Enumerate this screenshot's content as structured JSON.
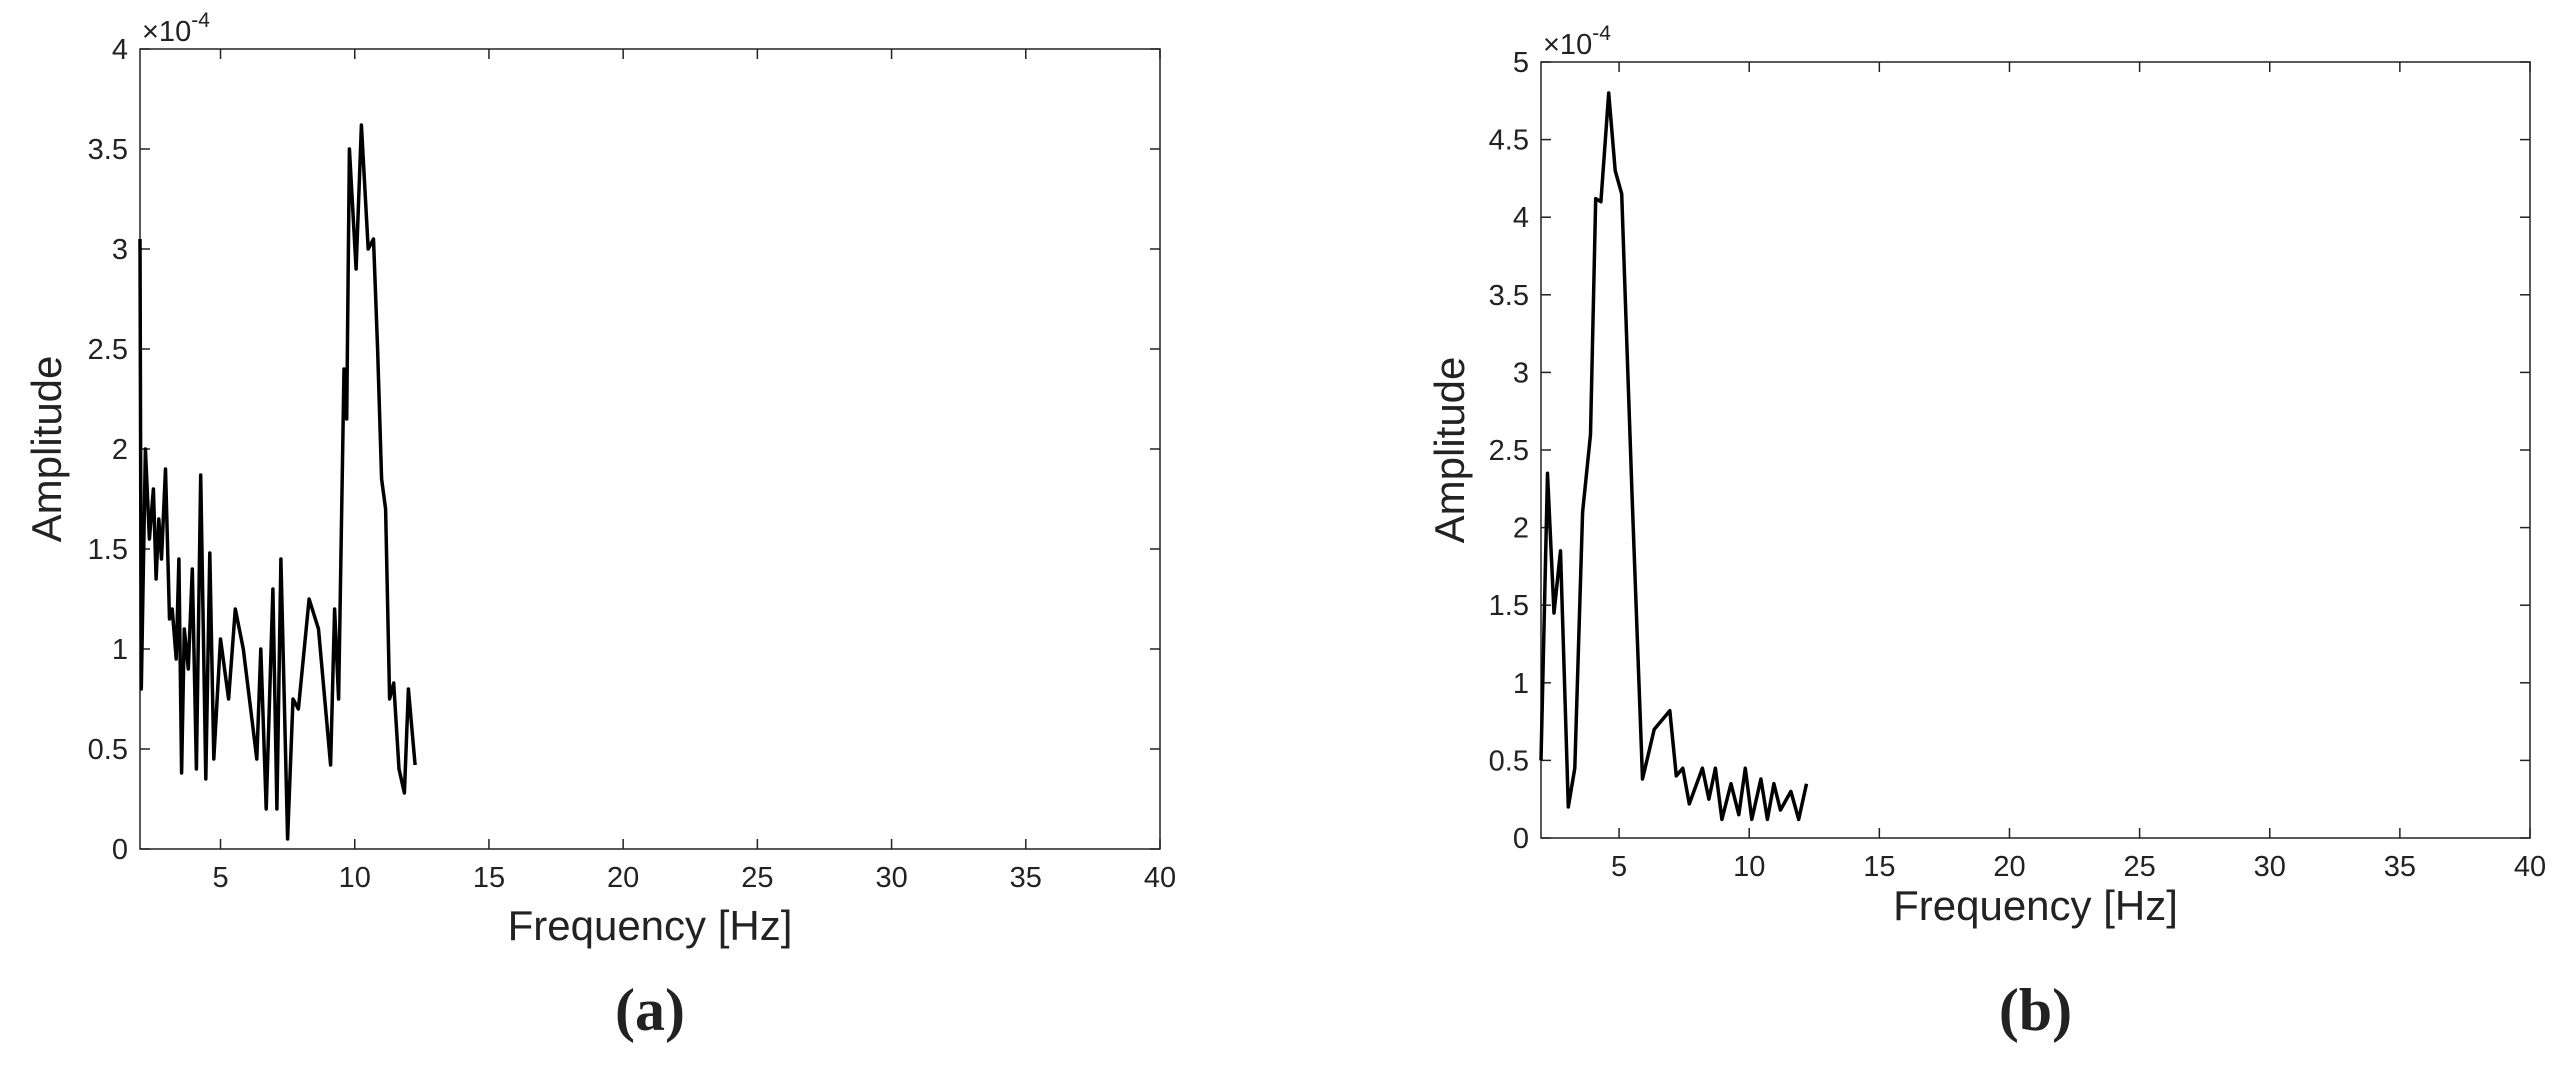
{
  "chart_data": [
    {
      "type": "line",
      "label": "(a)",
      "xlabel": "Frequency [Hz]",
      "ylabel": "Amplitude",
      "y_scale_base": "×10",
      "y_scale_exponent": "-4",
      "color": "#000000",
      "grid": false,
      "xlim": [
        2,
        40
      ],
      "xticks": [
        5,
        10,
        15,
        20,
        25,
        30,
        35,
        40
      ],
      "ylim": [
        0,
        4
      ],
      "yticks": [
        0,
        0.5,
        1,
        1.5,
        2,
        2.5,
        3,
        3.5,
        4
      ],
      "x": [
        2.0,
        2.05,
        2.2,
        2.35,
        2.5,
        2.6,
        2.7,
        2.8,
        2.95,
        3.1,
        3.2,
        3.35,
        3.45,
        3.55,
        3.65,
        3.8,
        3.95,
        4.1,
        4.26,
        4.45,
        4.6,
        4.75,
        5.0,
        5.3,
        5.55,
        5.85,
        6.35,
        6.5,
        6.7,
        6.95,
        7.1,
        7.25,
        7.5,
        7.7,
        7.9,
        8.3,
        8.65,
        9.1,
        9.25,
        9.4,
        9.6,
        9.7,
        9.8,
        10.05,
        10.25,
        10.5,
        10.7,
        10.85,
        11.0,
        11.15,
        11.3,
        11.45,
        11.65,
        11.85,
        12.0,
        12.25
      ],
      "values": [
        3.05,
        0.8,
        2.0,
        1.55,
        1.8,
        1.35,
        1.65,
        1.45,
        1.9,
        1.15,
        1.2,
        0.95,
        1.45,
        0.38,
        1.1,
        0.9,
        1.4,
        0.4,
        1.87,
        0.35,
        1.48,
        0.45,
        1.05,
        0.75,
        1.2,
        1.0,
        0.45,
        1.0,
        0.2,
        1.3,
        0.2,
        1.45,
        0.05,
        0.75,
        0.7,
        1.25,
        1.1,
        0.42,
        1.2,
        0.75,
        2.4,
        2.15,
        3.5,
        2.9,
        3.62,
        3.0,
        3.05,
        2.5,
        1.85,
        1.7,
        0.75,
        0.83,
        0.4,
        0.28,
        0.8,
        0.42
      ]
    },
    {
      "type": "line",
      "label": "(b)",
      "xlabel": "Frequency [Hz]",
      "ylabel": "Amplitude",
      "y_scale_base": "×10",
      "y_scale_exponent": "-4",
      "color": "#000000",
      "grid": false,
      "xlim": [
        2,
        40
      ],
      "xticks": [
        5,
        10,
        15,
        20,
        25,
        30,
        35,
        40
      ],
      "ylim": [
        0,
        5
      ],
      "yticks": [
        0,
        0.5,
        1,
        1.5,
        2,
        2.5,
        3,
        3.5,
        4,
        4.5,
        5
      ],
      "x": [
        2.0,
        2.25,
        2.5,
        2.75,
        3.05,
        3.3,
        3.6,
        3.9,
        4.1,
        4.3,
        4.6,
        4.85,
        5.1,
        5.5,
        5.9,
        6.35,
        6.95,
        7.2,
        7.45,
        7.7,
        8.2,
        8.45,
        8.7,
        8.95,
        9.3,
        9.6,
        9.85,
        10.1,
        10.45,
        10.7,
        10.95,
        11.2,
        11.6,
        11.9,
        12.2
      ],
      "values": [
        0.5,
        2.35,
        1.45,
        1.85,
        0.2,
        0.45,
        2.1,
        2.6,
        4.12,
        4.1,
        4.8,
        4.3,
        4.15,
        2.2,
        0.38,
        0.7,
        0.82,
        0.4,
        0.45,
        0.22,
        0.45,
        0.25,
        0.45,
        0.12,
        0.35,
        0.15,
        0.45,
        0.12,
        0.38,
        0.12,
        0.35,
        0.18,
        0.3,
        0.12,
        0.35
      ]
    }
  ]
}
